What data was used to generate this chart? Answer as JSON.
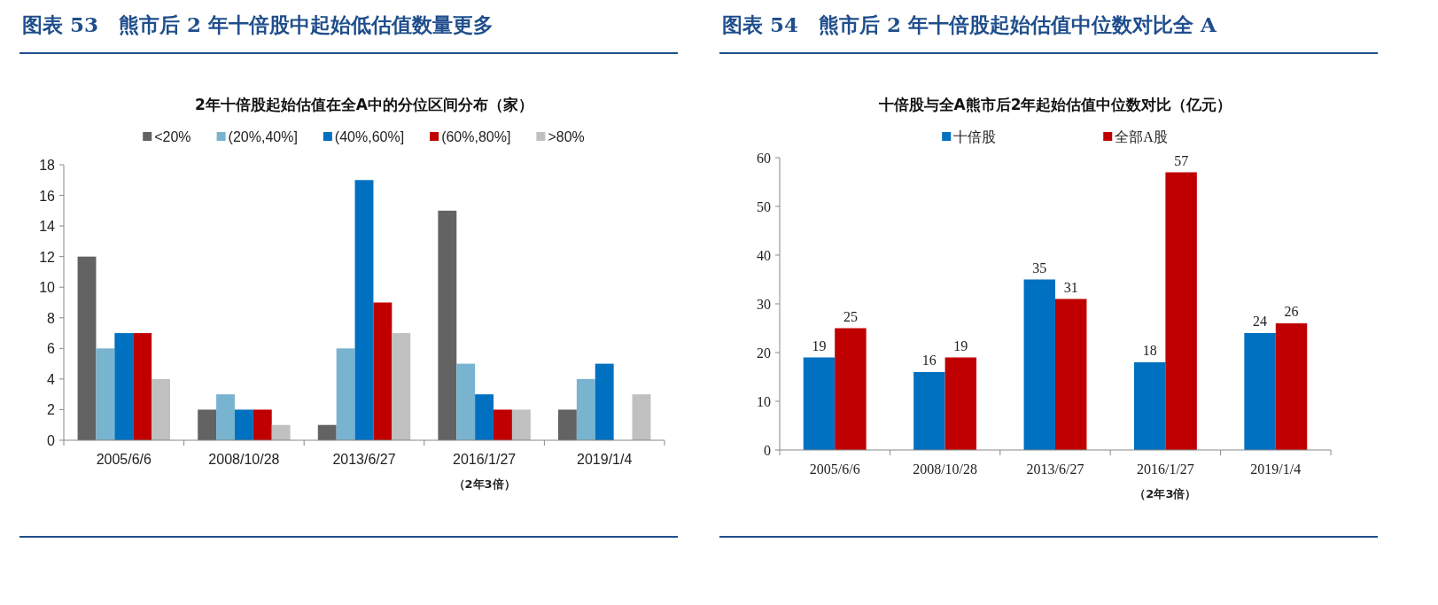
{
  "chart_data": [
    {
      "type": "bar",
      "title": "图表 53　熊市后 2 年十倍股中起始低估值数量更多",
      "subtitle": "2年十倍股起始估值在全A中的分位区间分布（家）",
      "categories": [
        "2005/6/6",
        "2008/10/28",
        "2013/6/27",
        "2016/1/27",
        "2019/1/4"
      ],
      "series": [
        {
          "name": "<20%",
          "color": "#636363",
          "values": [
            12,
            2,
            1,
            15,
            2
          ]
        },
        {
          "name": "(20%,40%]",
          "color": "#78b3d0",
          "values": [
            6,
            3,
            6,
            5,
            4
          ]
        },
        {
          "name": "(40%,60%]",
          "color": "#0070c0",
          "values": [
            7,
            2,
            17,
            3,
            5
          ]
        },
        {
          "name": "(60%,80%]",
          "color": "#c00000",
          "values": [
            7,
            2,
            9,
            2,
            0
          ]
        },
        {
          "name": ">80%",
          "color": "#c0c0c0",
          "values": [
            4,
            1,
            7,
            2,
            3
          ]
        }
      ],
      "ylim": [
        0,
        18
      ],
      "yticks": [
        0,
        2,
        4,
        6,
        8,
        10,
        12,
        14,
        16,
        18
      ],
      "legend": "top",
      "annotations": [
        "（2年3倍）"
      ]
    },
    {
      "type": "bar",
      "title": "图表 54　熊市后 2 年十倍股起始估值中位数对比全 A",
      "subtitle": "十倍股与全A熊市后2年起始估值中位数对比（亿元）",
      "categories": [
        "2005/6/6",
        "2008/10/28",
        "2013/6/27",
        "2016/1/27",
        "2019/1/4"
      ],
      "series": [
        {
          "name": "十倍股",
          "color": "#0070c0",
          "values": [
            19,
            16,
            35,
            18,
            24
          ]
        },
        {
          "name": "全部A股",
          "color": "#c00000",
          "values": [
            25,
            19,
            31,
            57,
            26
          ]
        }
      ],
      "ylim": [
        0,
        60
      ],
      "yticks": [
        0,
        10,
        20,
        30,
        40,
        50,
        60
      ],
      "legend": "top",
      "data_labels": true,
      "annotations": [
        "（2年3倍）"
      ]
    }
  ]
}
